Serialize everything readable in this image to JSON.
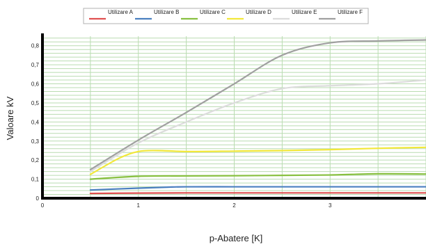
{
  "chart_data": {
    "type": "line",
    "xlabel": "p-Abatere [K]",
    "ylabel": "Valoare kV",
    "xlim": [
      0,
      4
    ],
    "ylim": [
      0,
      0.85
    ],
    "x_ticks": [
      0,
      1,
      2,
      3
    ],
    "x_tick_labels": [
      "0",
      "1",
      "2",
      "3"
    ],
    "y_ticks": [
      0,
      0.1,
      0.2,
      0.3,
      0.4,
      0.5,
      0.6,
      0.7,
      0.8
    ],
    "y_tick_labels": [
      "0",
      "0,1",
      "0,2",
      "0,3",
      "0,4",
      "0,5",
      "0,6",
      "0,7",
      "0,8"
    ],
    "grid": true,
    "legend_position": "top",
    "series": [
      {
        "name": "Utilizare A",
        "color": "#e05050",
        "points": [
          [
            0.5,
            0.025
          ],
          [
            1.0,
            0.027
          ],
          [
            1.5,
            0.028
          ],
          [
            2.0,
            0.028
          ],
          [
            2.5,
            0.028
          ],
          [
            3.0,
            0.028
          ],
          [
            3.5,
            0.028
          ],
          [
            4.0,
            0.028
          ]
        ]
      },
      {
        "name": "Utilizare B",
        "color": "#4a7fc0",
        "points": [
          [
            0.5,
            0.043
          ],
          [
            1.0,
            0.053
          ],
          [
            1.3,
            0.058
          ],
          [
            1.5,
            0.06
          ],
          [
            2.0,
            0.06
          ],
          [
            2.5,
            0.06
          ],
          [
            3.0,
            0.06
          ],
          [
            3.5,
            0.06
          ],
          [
            4.0,
            0.06
          ]
        ]
      },
      {
        "name": "Utilizare C",
        "color": "#88c040",
        "points": [
          [
            0.5,
            0.1
          ],
          [
            1.0,
            0.115
          ],
          [
            1.5,
            0.117
          ],
          [
            2.0,
            0.118
          ],
          [
            2.5,
            0.12
          ],
          [
            3.0,
            0.122
          ],
          [
            3.5,
            0.128
          ],
          [
            4.0,
            0.127
          ]
        ]
      },
      {
        "name": "Utilizare D",
        "color": "#f2e83a",
        "points": [
          [
            0.5,
            0.125
          ],
          [
            0.8,
            0.21
          ],
          [
            1.0,
            0.245
          ],
          [
            1.2,
            0.25
          ],
          [
            1.5,
            0.245
          ],
          [
            2.0,
            0.247
          ],
          [
            2.5,
            0.25
          ],
          [
            3.0,
            0.255
          ],
          [
            3.5,
            0.262
          ],
          [
            4.0,
            0.267
          ]
        ]
      },
      {
        "name": "Utilizare E",
        "color": "#dcdcdc",
        "points": [
          [
            0.5,
            0.14
          ],
          [
            1.0,
            0.29
          ],
          [
            1.5,
            0.4
          ],
          [
            2.0,
            0.5
          ],
          [
            2.5,
            0.575
          ],
          [
            3.0,
            0.59
          ],
          [
            3.5,
            0.6
          ],
          [
            4.0,
            0.62
          ]
        ]
      },
      {
        "name": "Utilizare F",
        "color": "#a0a0a0",
        "points": [
          [
            0.5,
            0.15
          ],
          [
            1.0,
            0.305
          ],
          [
            1.5,
            0.45
          ],
          [
            2.0,
            0.6
          ],
          [
            2.5,
            0.75
          ],
          [
            3.0,
            0.815
          ],
          [
            3.5,
            0.825
          ],
          [
            4.0,
            0.83
          ]
        ]
      }
    ]
  }
}
